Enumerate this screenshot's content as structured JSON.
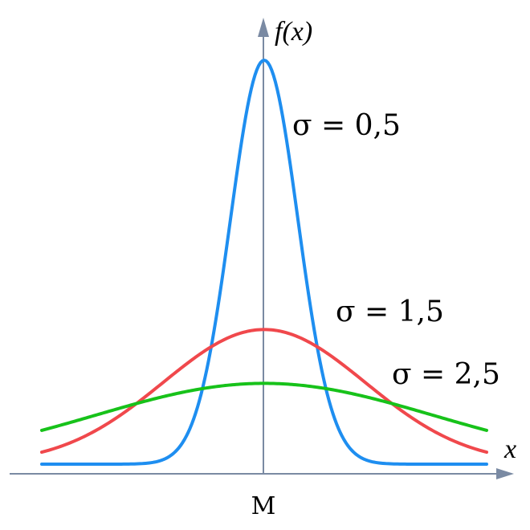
{
  "chart_data": {
    "type": "line",
    "title": "",
    "xlabel": "x",
    "ylabel": "f(x)",
    "center_tick_label": "M",
    "x_range": [
      -3.3,
      3.3
    ],
    "ylim": [
      0,
      0.8
    ],
    "grid": false,
    "legend": "none",
    "mean": 0,
    "series": [
      {
        "name": "σ = 0,5",
        "sigma": 0.5,
        "color": "#1e8ef0"
      },
      {
        "name": "σ = 1,5",
        "sigma": 1.5,
        "color": "#f0484c"
      },
      {
        "name": "σ = 2,5",
        "sigma": 2.5,
        "color": "#17c21a"
      }
    ]
  }
}
